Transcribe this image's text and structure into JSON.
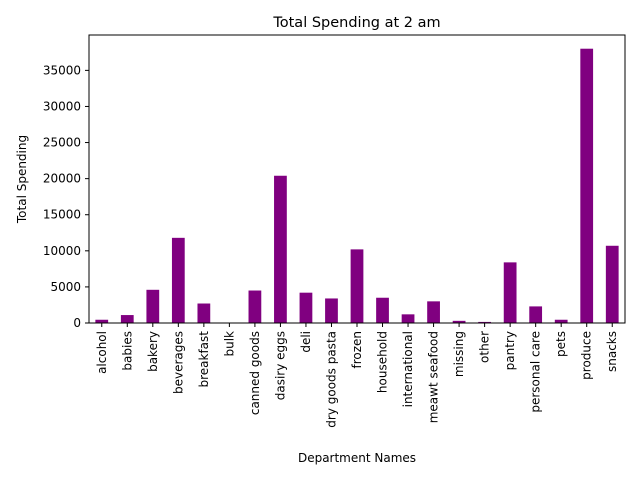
{
  "chart_data": {
    "type": "bar",
    "title": "Total Spending at 2 am",
    "xlabel": "Department Names",
    "ylabel": "Total Spending",
    "ylim": [
      0,
      39900
    ],
    "yticks": [
      0,
      5000,
      10000,
      15000,
      20000,
      25000,
      30000,
      35000
    ],
    "grid": false,
    "legend": "none",
    "bar_color": "#800080",
    "categories": [
      "alcohol",
      "babies",
      "bakery",
      "beverages",
      "breakfast",
      "bulk",
      "canned goods",
      "dasiry eggs",
      "deli",
      "dry goods pasta",
      "frozen",
      "household",
      "international",
      "meawt seafood",
      "missing",
      "other",
      "pantry",
      "personal care",
      "pets",
      "produce",
      "snacks"
    ],
    "values": [
      450,
      1100,
      4600,
      11800,
      2700,
      40,
      4500,
      20400,
      4200,
      3400,
      10200,
      3500,
      1200,
      3000,
      300,
      150,
      8400,
      2300,
      450,
      38000,
      10700
    ]
  }
}
